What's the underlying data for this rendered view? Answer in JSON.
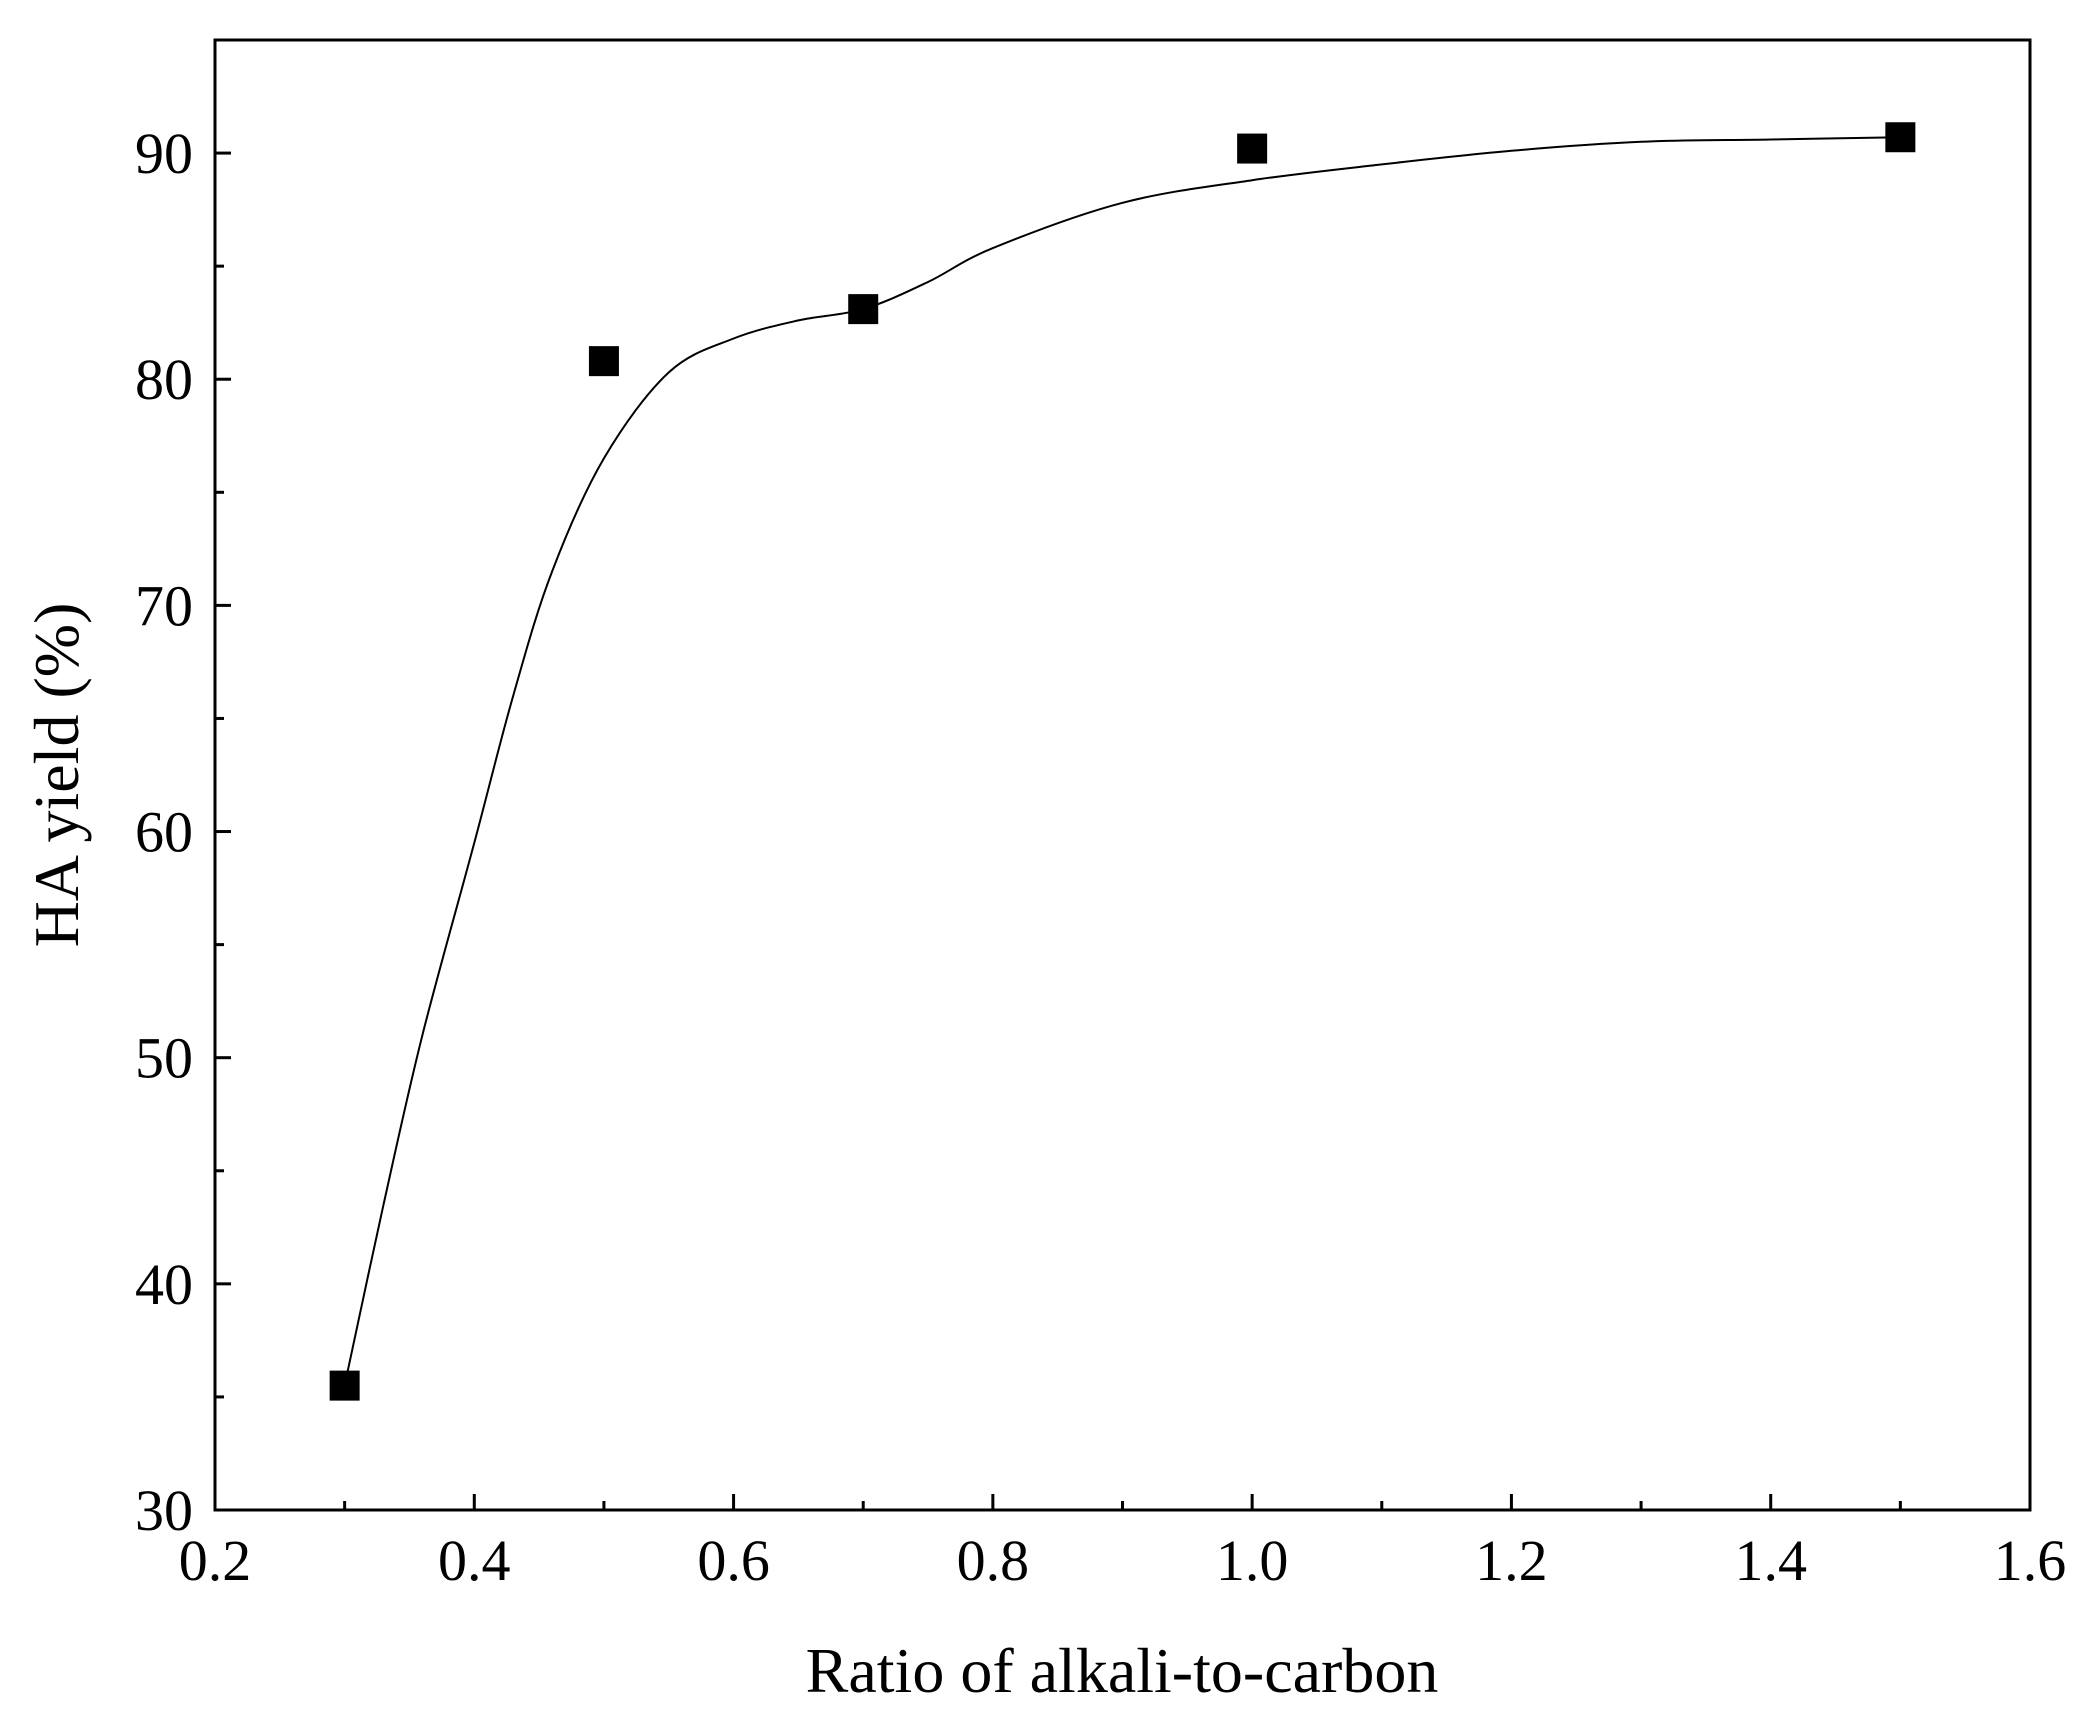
{
  "chart_data": {
    "type": "scatter",
    "xlabel": "Ratio of alkali-to-carbon",
    "ylabel": "HA yield (%)",
    "xlim": [
      0.2,
      1.6
    ],
    "ylim": [
      30,
      95
    ],
    "x_ticks": [
      "0.2",
      "0.4",
      "0.6",
      "0.8",
      "1.0",
      "1.2",
      "1.4",
      "1.6"
    ],
    "y_ticks": [
      "30",
      "40",
      "50",
      "60",
      "70",
      "80",
      "90"
    ],
    "series": [
      {
        "marker": "square",
        "color": "#000000",
        "x": [
          0.3,
          0.5,
          0.7,
          1.0,
          1.5
        ],
        "y": [
          35.5,
          80.8,
          83.1,
          90.2,
          90.7
        ]
      }
    ],
    "fit_curve": {
      "color": "#000000",
      "x": [
        0.3,
        0.33,
        0.36,
        0.4,
        0.43,
        0.46,
        0.5,
        0.55,
        0.6,
        0.65,
        0.7,
        0.75,
        0.8,
        0.9,
        1.0,
        1.1,
        1.2,
        1.3,
        1.4,
        1.5
      ],
      "y": [
        35.5,
        43.5,
        51.0,
        59.5,
        66.0,
        71.5,
        76.5,
        80.3,
        81.8,
        82.6,
        83.1,
        84.3,
        85.8,
        87.8,
        88.8,
        89.5,
        90.1,
        90.5,
        90.6,
        90.7
      ]
    }
  }
}
